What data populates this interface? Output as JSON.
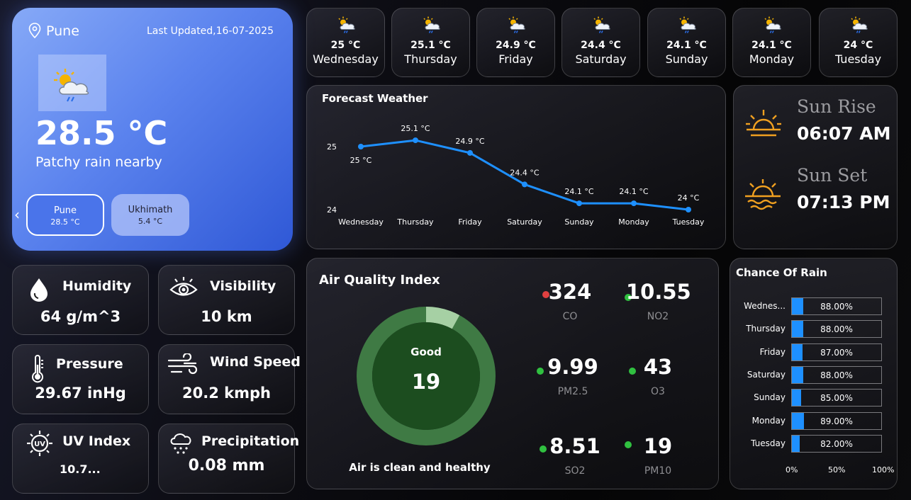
{
  "location": {
    "city": "Pune",
    "last_updated": "Last Updated,16-07-2025",
    "temperature": "28.5 °C",
    "condition": "Patchy rain nearby",
    "icon": "partly-cloudy-rain-icon",
    "cities": [
      {
        "name": "Pune",
        "temp": "28.5 °C"
      },
      {
        "name": "Ukhimath",
        "temp": "5.4 °C"
      }
    ]
  },
  "days": [
    {
      "day": "Wednesday",
      "temp": "25 °C"
    },
    {
      "day": "Thursday",
      "temp": "25.1 °C"
    },
    {
      "day": "Friday",
      "temp": "24.9 °C"
    },
    {
      "day": "Saturday",
      "temp": "24.4 °C"
    },
    {
      "day": "Sunday",
      "temp": "24.1 °C"
    },
    {
      "day": "Monday",
      "temp": "24.1 °C"
    },
    {
      "day": "Tuesday",
      "temp": "24 °C"
    }
  ],
  "forecast": {
    "title": "Forecast Weather",
    "y_ticks": [
      "25",
      "24"
    ],
    "chart_data": {
      "type": "line",
      "categories": [
        "Wednesday",
        "Thursday",
        "Friday",
        "Saturday",
        "Sunday",
        "Monday",
        "Tuesday"
      ],
      "values": [
        25,
        25.1,
        24.9,
        24.4,
        24.1,
        24.1,
        24
      ],
      "data_labels": [
        "25 °C",
        "25.1 °C",
        "24.9 °C",
        "24.4 °C",
        "24.1 °C",
        "24.1 °C",
        "24 °C"
      ],
      "ylim": [
        24,
        25.25
      ],
      "color": "#1e90ff"
    }
  },
  "sun": {
    "rise_label": "Sun Rise",
    "rise_time": "06:07 AM",
    "set_label": "Sun Set",
    "set_time": "07:13 PM",
    "color": "#f0a020"
  },
  "stats": {
    "humidity": {
      "label": "Humidity",
      "value": "64 g/m^3"
    },
    "visibility": {
      "label": "Visibility",
      "value": "10 km"
    },
    "pressure": {
      "label": "Pressure",
      "value": "29.67 inHg"
    },
    "wind": {
      "label": "Wind Speed",
      "value": "20.2 kmph"
    },
    "uv": {
      "label": "UV Index",
      "value": "10.7..."
    },
    "precip": {
      "label": "Precipitation",
      "value": "0.08 mm"
    }
  },
  "aqi": {
    "title": "Air Quality Index",
    "status": "Good",
    "value": "19",
    "message": "Air is clean and healthy",
    "gauge_fraction": 0.08,
    "pollutants": [
      {
        "name": "CO",
        "value": "324",
        "color": "#e04040"
      },
      {
        "name": "NO2",
        "value": "10.55",
        "color": "#30c040"
      },
      {
        "name": "PM2.5",
        "value": "9.99",
        "color": "#30c040"
      },
      {
        "name": "O3",
        "value": "43",
        "color": "#30c040"
      },
      {
        "name": "SO2",
        "value": "8.51",
        "color": "#30c040"
      },
      {
        "name": "PM10",
        "value": "19",
        "color": "#30c040"
      }
    ]
  },
  "rain": {
    "title": "Chance Of Rain",
    "axis": [
      "0%",
      "50%",
      "100%"
    ],
    "chart_data": {
      "type": "bar",
      "categories": [
        "Wednes...",
        "Thursday",
        "Friday",
        "Saturday",
        "Sunday",
        "Monday",
        "Tuesday"
      ],
      "values": [
        88,
        88,
        87,
        88,
        85,
        89,
        82
      ],
      "labels": [
        "88.00%",
        "88.00%",
        "87.00%",
        "88.00%",
        "85.00%",
        "89.00%",
        "82.00%"
      ],
      "color": "#1e90ff"
    }
  }
}
